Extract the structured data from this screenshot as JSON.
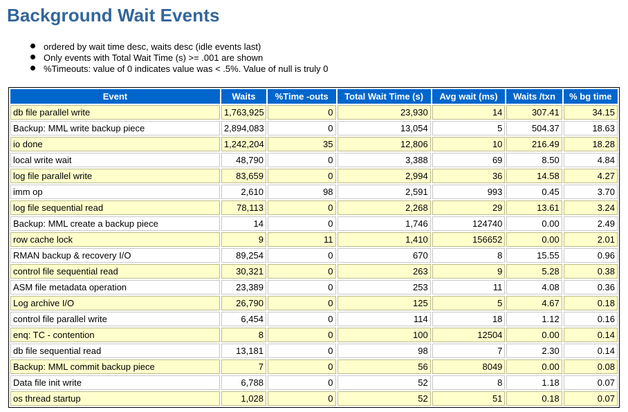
{
  "title": "Background Wait Events",
  "notes": [
    "ordered by wait time desc, waits desc (idle events last)",
    "Only events with Total Wait Time (s) >= .001 are shown",
    "%Timeouts: value of 0 indicates value was < .5%. Value of null is truly 0"
  ],
  "table": {
    "headers": [
      "Event",
      "Waits",
      "%Time -outs",
      "Total Wait Time (s)",
      "Avg wait (ms)",
      "Waits /txn",
      "% bg time"
    ],
    "rows": [
      [
        "db file parallel write",
        "1,763,925",
        "0",
        "23,930",
        "14",
        "307.41",
        "34.15"
      ],
      [
        "Backup: MML write backup piece",
        "2,894,083",
        "0",
        "13,054",
        "5",
        "504.37",
        "18.63"
      ],
      [
        "io done",
        "1,242,204",
        "35",
        "12,806",
        "10",
        "216.49",
        "18.28"
      ],
      [
        "local write wait",
        "48,790",
        "0",
        "3,388",
        "69",
        "8.50",
        "4.84"
      ],
      [
        "log file parallel write",
        "83,659",
        "0",
        "2,994",
        "36",
        "14.58",
        "4.27"
      ],
      [
        "imm op",
        "2,610",
        "98",
        "2,591",
        "993",
        "0.45",
        "3.70"
      ],
      [
        "log file sequential read",
        "78,113",
        "0",
        "2,268",
        "29",
        "13.61",
        "3.24"
      ],
      [
        "Backup: MML create a backup piece",
        "14",
        "0",
        "1,746",
        "124740",
        "0.00",
        "2.49"
      ],
      [
        "row cache lock",
        "9",
        "11",
        "1,410",
        "156652",
        "0.00",
        "2.01"
      ],
      [
        "RMAN backup & recovery I/O",
        "89,254",
        "0",
        "670",
        "8",
        "15.55",
        "0.96"
      ],
      [
        "control file sequential read",
        "30,321",
        "0",
        "263",
        "9",
        "5.28",
        "0.38"
      ],
      [
        "ASM file metadata operation",
        "23,389",
        "0",
        "253",
        "11",
        "4.08",
        "0.36"
      ],
      [
        "Log archive I/O",
        "26,790",
        "0",
        "125",
        "5",
        "4.67",
        "0.18"
      ],
      [
        "control file parallel write",
        "6,454",
        "0",
        "114",
        "18",
        "1.12",
        "0.16"
      ],
      [
        "enq: TC - contention",
        "8",
        "0",
        "100",
        "12504",
        "0.00",
        "0.14"
      ],
      [
        "db file sequential read",
        "13,181",
        "0",
        "98",
        "7",
        "2.30",
        "0.14"
      ],
      [
        "Backup: MML commit backup piece",
        "7",
        "0",
        "56",
        "8049",
        "0.00",
        "0.08"
      ],
      [
        "Data file init write",
        "6,788",
        "0",
        "52",
        "8",
        "1.18",
        "0.07"
      ],
      [
        "os thread startup",
        "1,028",
        "0",
        "52",
        "51",
        "0.18",
        "0.07"
      ]
    ]
  }
}
